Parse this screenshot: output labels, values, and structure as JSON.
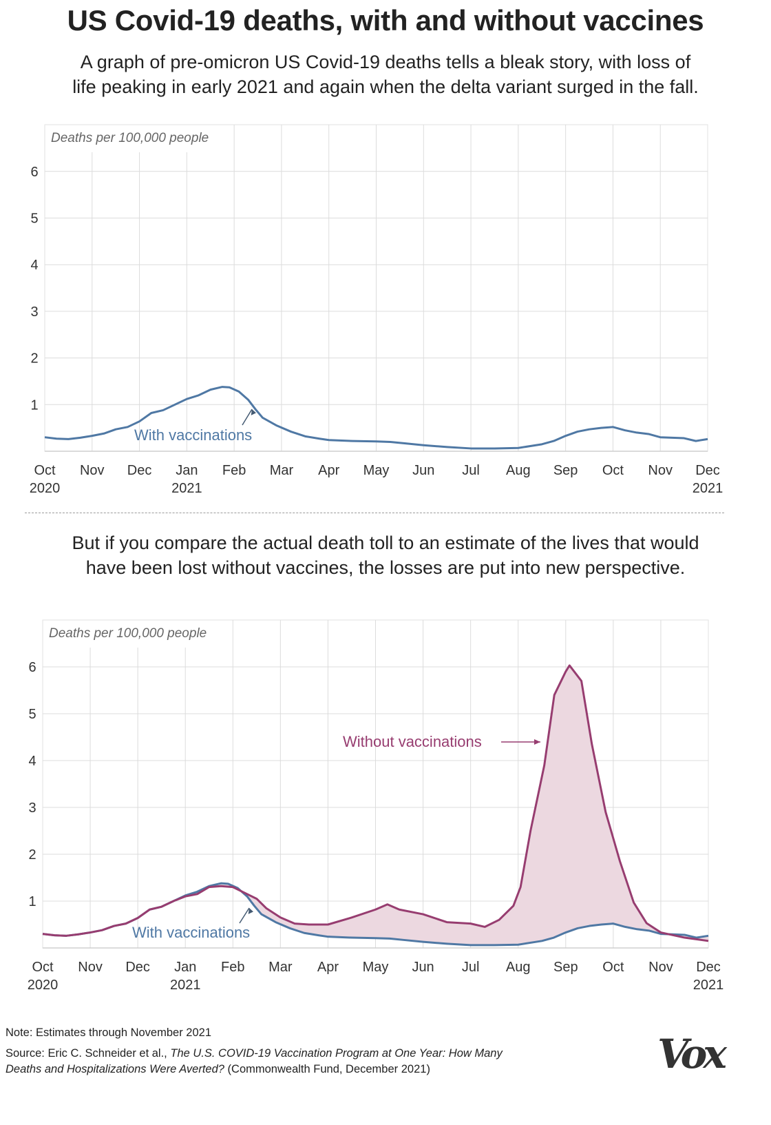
{
  "title": "US Covid-19 deaths, with and without vaccines",
  "subtitle1": {
    "line1": "A graph of pre-omicron US Covid-19 deaths tells a bleak story, with loss of",
    "line2": "life peaking in early 2021 and again when the delta variant surged in the fall."
  },
  "subtitle2": {
    "line1": "But if you compare the actual death toll to an estimate of the lives that would",
    "line2": "have been lost without vaccines, the losses are put into new perspective."
  },
  "footer": {
    "note": "Note: Estimates through November 2021",
    "source_prefix": "Source: Eric C. Schneider et al., ",
    "source_title": "The U.S. COVID-19 Vaccination Program at One Year: How Many Deaths and Hospitalizations Were Averted?",
    "source_suffix": " (Commonwealth Fund, December 2021)",
    "logo": "Vox"
  },
  "colors": {
    "with": "#4f78a4",
    "without": "#973d70",
    "fill": "#ecd8e0",
    "grid": "#dcdcdc"
  },
  "chart_data": [
    {
      "type": "line",
      "ylabel": "Deaths per 100,000 people",
      "ylim": [
        0,
        6.5
      ],
      "yticks": [
        "1",
        "2",
        "3",
        "4",
        "5",
        "6"
      ],
      "xticks": [
        {
          "m": "Oct",
          "y": "2020"
        },
        {
          "m": "Nov"
        },
        {
          "m": "Dec"
        },
        {
          "m": "Jan",
          "y": "2021"
        },
        {
          "m": "Feb"
        },
        {
          "m": "Mar"
        },
        {
          "m": "Apr"
        },
        {
          "m": "May"
        },
        {
          "m": "Jun"
        },
        {
          "m": "Jul"
        },
        {
          "m": "Aug"
        },
        {
          "m": "Sep"
        },
        {
          "m": "Oct"
        },
        {
          "m": "Nov"
        },
        {
          "m": "Dec",
          "y": "2021"
        }
      ],
      "annotations": [
        {
          "text": "With vaccinations",
          "series": "with"
        }
      ],
      "series": [
        {
          "name": "With vaccinations",
          "key": "with",
          "x": [
            0,
            0.25,
            0.5,
            0.75,
            1,
            1.25,
            1.5,
            1.75,
            2,
            2.25,
            2.5,
            2.75,
            3,
            3.25,
            3.5,
            3.75,
            3.9,
            4.1,
            4.3,
            4.45,
            4.6,
            4.9,
            5.2,
            5.5,
            5.8,
            6,
            6.5,
            7,
            7.3,
            7.6,
            8,
            8.5,
            9,
            9.5,
            10,
            10.5,
            10.75,
            11,
            11.25,
            11.5,
            11.75,
            12,
            12.25,
            12.5,
            12.75,
            13,
            13.25,
            13.5,
            13.75,
            14
          ],
          "y": [
            0.3,
            0.27,
            0.26,
            0.29,
            0.33,
            0.38,
            0.47,
            0.52,
            0.64,
            0.82,
            0.88,
            1.0,
            1.12,
            1.2,
            1.32,
            1.38,
            1.37,
            1.28,
            1.1,
            0.9,
            0.72,
            0.55,
            0.42,
            0.32,
            0.27,
            0.24,
            0.22,
            0.21,
            0.2,
            0.17,
            0.13,
            0.09,
            0.06,
            0.06,
            0.07,
            0.15,
            0.22,
            0.33,
            0.42,
            0.47,
            0.5,
            0.52,
            0.45,
            0.4,
            0.37,
            0.3,
            0.29,
            0.28,
            0.22,
            0.26
          ]
        }
      ]
    },
    {
      "type": "area",
      "ylabel": "Deaths per 100,000 people",
      "ylim": [
        0,
        6.5
      ],
      "yticks": [
        "1",
        "2",
        "3",
        "4",
        "5",
        "6"
      ],
      "xticks": [
        {
          "m": "Oct",
          "y": "2020"
        },
        {
          "m": "Nov"
        },
        {
          "m": "Dec"
        },
        {
          "m": "Jan",
          "y": "2021"
        },
        {
          "m": "Feb"
        },
        {
          "m": "Mar"
        },
        {
          "m": "Apr"
        },
        {
          "m": "May"
        },
        {
          "m": "Jun"
        },
        {
          "m": "Jul"
        },
        {
          "m": "Aug"
        },
        {
          "m": "Sep"
        },
        {
          "m": "Oct"
        },
        {
          "m": "Nov"
        },
        {
          "m": "Dec",
          "y": "2021"
        }
      ],
      "annotations": [
        {
          "text": "With vaccinations",
          "series": "with"
        },
        {
          "text": "Without vaccinations",
          "series": "without"
        }
      ],
      "series": [
        {
          "name": "With vaccinations",
          "key": "with",
          "x": [
            0,
            0.25,
            0.5,
            0.75,
            1,
            1.25,
            1.5,
            1.75,
            2,
            2.25,
            2.5,
            2.75,
            3,
            3.25,
            3.5,
            3.75,
            3.9,
            4.1,
            4.3,
            4.45,
            4.6,
            4.9,
            5.2,
            5.5,
            5.8,
            6,
            6.5,
            7,
            7.3,
            7.6,
            8,
            8.5,
            9,
            9.5,
            10,
            10.5,
            10.75,
            11,
            11.25,
            11.5,
            11.75,
            12,
            12.25,
            12.5,
            12.75,
            13,
            13.25,
            13.5,
            13.75,
            14
          ],
          "y": [
            0.3,
            0.27,
            0.26,
            0.29,
            0.33,
            0.38,
            0.47,
            0.52,
            0.64,
            0.82,
            0.88,
            1.0,
            1.12,
            1.2,
            1.32,
            1.38,
            1.37,
            1.28,
            1.1,
            0.9,
            0.72,
            0.55,
            0.42,
            0.32,
            0.27,
            0.24,
            0.22,
            0.21,
            0.2,
            0.17,
            0.13,
            0.09,
            0.06,
            0.06,
            0.07,
            0.15,
            0.22,
            0.33,
            0.42,
            0.47,
            0.5,
            0.52,
            0.45,
            0.4,
            0.37,
            0.3,
            0.29,
            0.28,
            0.22,
            0.26
          ]
        },
        {
          "name": "Without vaccinations",
          "key": "without",
          "x": [
            0,
            0.25,
            0.5,
            0.75,
            1,
            1.25,
            1.5,
            1.75,
            2,
            2.25,
            2.5,
            2.75,
            3,
            3.25,
            3.5,
            3.75,
            4,
            4.3,
            4.5,
            4.7,
            5,
            5.3,
            5.6,
            6,
            6.5,
            7,
            7.25,
            7.5,
            8,
            8.5,
            9,
            9.3,
            9.6,
            9.9,
            10.05,
            10.26,
            10.55,
            10.76,
            11.0,
            11.08,
            11.33,
            11.55,
            11.84,
            12.14,
            12.43,
            12.7,
            13,
            13.5,
            14
          ],
          "y": [
            0.3,
            0.27,
            0.26,
            0.29,
            0.33,
            0.38,
            0.47,
            0.52,
            0.64,
            0.82,
            0.88,
            1.0,
            1.1,
            1.15,
            1.3,
            1.32,
            1.3,
            1.15,
            1.05,
            0.85,
            0.65,
            0.52,
            0.5,
            0.5,
            0.65,
            0.82,
            0.93,
            0.82,
            0.72,
            0.55,
            0.52,
            0.45,
            0.6,
            0.9,
            1.3,
            2.5,
            3.9,
            5.4,
            5.9,
            6.03,
            5.7,
            4.35,
            2.9,
            1.85,
            0.97,
            0.53,
            0.33,
            0.22,
            0.15
          ]
        }
      ]
    }
  ]
}
